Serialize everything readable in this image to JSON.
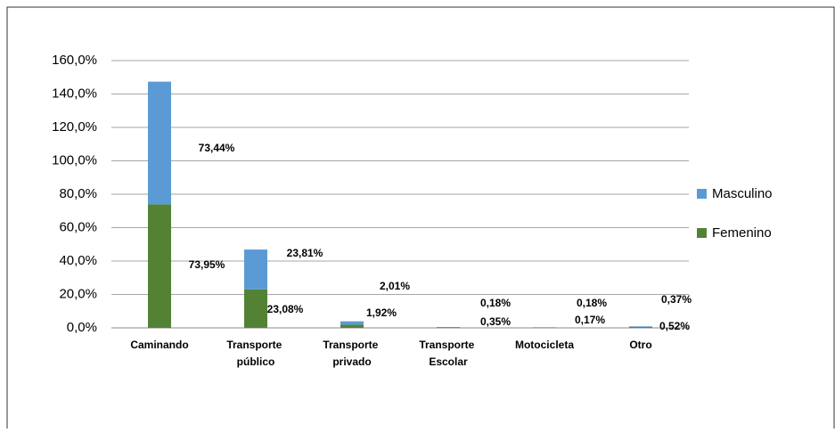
{
  "chart_data": {
    "type": "stacked_bar",
    "categories": [
      "Caminando",
      "Transporte público",
      "Transporte privado",
      "Transporte Escolar",
      "Motocicleta",
      "Otro"
    ],
    "series": [
      {
        "name": "Femenino",
        "color": "#548235",
        "values": [
          73.95,
          23.08,
          1.92,
          0.35,
          0.17,
          0.52
        ],
        "value_labels": [
          "73,95%",
          "23,08%",
          "1,92%",
          "0,35%",
          "0,17%",
          "0,52%"
        ]
      },
      {
        "name": "Masculino",
        "color": "#5b9bd5",
        "values": [
          73.44,
          23.81,
          2.01,
          0.18,
          0.18,
          0.37
        ],
        "value_labels": [
          "73,44%",
          "23,81%",
          "2,01%",
          "0,18%",
          "0,18%",
          "0,37%"
        ]
      }
    ],
    "ylim": [
      0,
      160
    ],
    "yticks": [
      {
        "value": 0,
        "label": "0,0%"
      },
      {
        "value": 20,
        "label": "20,0%"
      },
      {
        "value": 40,
        "label": "40,0%"
      },
      {
        "value": 60,
        "label": "60,0%"
      },
      {
        "value": 80,
        "label": "80,0%"
      },
      {
        "value": 100,
        "label": "100,0%"
      },
      {
        "value": 120,
        "label": "120,0%"
      },
      {
        "value": 140,
        "label": "140,0%"
      },
      {
        "value": 160,
        "label": "160,0%"
      }
    ],
    "grid": true,
    "legend": "right"
  }
}
